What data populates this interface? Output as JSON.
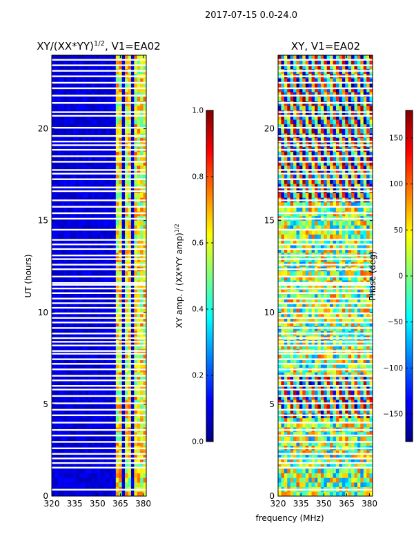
{
  "figure_title": "2017-07-15 0.0-24.0",
  "shared_xlabel": "frequency (MHz)",
  "colors": {
    "jet": [
      "#00007f",
      "#0000ff",
      "#007fff",
      "#00ffff",
      "#7fff7f",
      "#ffff00",
      "#ff7f00",
      "#ff0000",
      "#7f0000"
    ],
    "gap": "#ffffff"
  },
  "chart_data": [
    {
      "type": "heatmap",
      "title": "XY/(XX*YY)",
      "title_exponent": "1/2",
      "title_suffix": ", V1=EA02",
      "xlabel": "",
      "ylabel": "UT (hours)",
      "xlim": [
        320,
        382
      ],
      "ylim": [
        0,
        24
      ],
      "xticks": [
        320,
        335,
        350,
        365,
        380
      ],
      "yticks": [
        0,
        5,
        10,
        15,
        20
      ],
      "colorbar": {
        "label": "XY amp. / (XX*YY amp)",
        "label_exponent": "1/2",
        "range": [
          0.0,
          1.0
        ],
        "ticks": [
          "0.0",
          "0.2",
          "0.4",
          "0.6",
          "0.8",
          "1.0"
        ]
      },
      "high_amplitude_bands_mhz": [
        [
          362,
          366
        ],
        [
          369,
          372
        ],
        [
          374,
          377
        ],
        [
          378,
          381
        ]
      ],
      "typical_value_background": 0.05,
      "typical_value_bands": 0.6
    },
    {
      "type": "heatmap",
      "title": "XY, V1=EA02",
      "xlabel": "frequency (MHz)",
      "ylabel": "",
      "xlim": [
        320,
        382
      ],
      "ylim": [
        0,
        24
      ],
      "xticks": [
        320,
        335,
        350,
        365,
        380
      ],
      "yticks": [
        0,
        5,
        10,
        15,
        20
      ],
      "colorbar": {
        "label": "Phase (deg)",
        "range": [
          -180,
          180
        ],
        "ticks": [
          "-150",
          "-100",
          "-50",
          "0",
          "50",
          "100",
          "150"
        ]
      },
      "phase_winding_hours": [
        [
          4.2,
          6.6
        ],
        [
          16.0,
          24.0
        ]
      ],
      "noisy_phase_hours": [
        [
          6.6,
          16.0
        ]
      ]
    }
  ],
  "data_gaps_ut_hours": [
    0.35,
    1.55,
    1.8,
    2.05,
    2.3,
    2.6,
    2.95,
    3.3,
    3.6,
    4.0,
    4.4,
    4.7,
    5.05,
    5.45,
    5.8,
    6.0,
    6.3,
    6.55,
    6.9,
    7.2,
    7.45,
    7.75,
    7.9,
    8.2,
    8.4,
    8.6,
    8.85,
    9.15,
    9.45,
    9.7,
    9.95,
    10.25,
    10.5,
    10.75,
    11.05,
    11.3,
    11.5,
    11.6,
    11.95,
    12.35,
    12.6,
    12.9,
    13.1,
    13.45,
    13.7,
    13.95,
    14.5,
    15.1,
    15.4,
    15.75,
    16.1,
    16.6,
    16.8,
    17.25,
    17.55,
    17.75,
    18.2,
    18.5,
    18.85,
    19.1,
    19.3,
    19.6,
    20.05,
    20.7,
    20.9,
    21.4,
    21.8,
    22.2,
    22.5,
    22.85,
    23.15,
    23.45,
    23.75
  ]
}
